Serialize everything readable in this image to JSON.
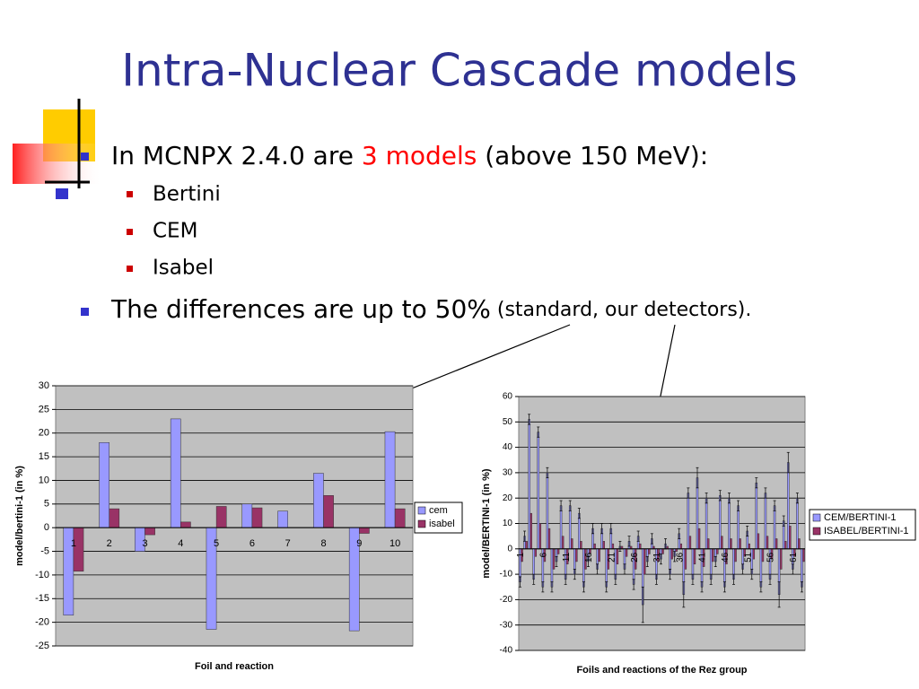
{
  "slide": {
    "title": "Intra-Nuclear Cascade models",
    "bullet1": {
      "pre": "In MCNPX 2.4.0 are ",
      "red": "3 models",
      "post": " (above 150 MeV):"
    },
    "subbullets": [
      "Bertini",
      "CEM",
      "Isabel"
    ],
    "bullet2": {
      "main": "The differences are up to 50%",
      "small": " (standard, our detectors)."
    }
  },
  "chart_data": [
    {
      "type": "bar",
      "xlabel": "Foil and reaction",
      "ylabel": "model/bertini-1 (in %)",
      "categories": [
        "1",
        "2",
        "3",
        "4",
        "5",
        "6",
        "7",
        "8",
        "9",
        "10"
      ],
      "series": [
        {
          "name": "cem",
          "color": "#9999ff",
          "values": [
            -18.5,
            18,
            -5,
            23,
            -21.5,
            5,
            3.5,
            11.5,
            -21.8,
            20.3
          ]
        },
        {
          "name": "isabel",
          "color": "#993366",
          "values": [
            -9.2,
            4,
            -1.5,
            1.2,
            4.5,
            4.2,
            0,
            6.8,
            -1.2,
            4
          ]
        }
      ],
      "ylim": [
        -25,
        30
      ],
      "yticks": [
        -25,
        -20,
        -15,
        -10,
        -5,
        0,
        5,
        10,
        15,
        20,
        25,
        30
      ],
      "grid": true,
      "background": "#c0c0c0",
      "legend": "right"
    },
    {
      "type": "bar",
      "xlabel": "Foils and reactions of the Rez group",
      "ylabel": "model/BERTINI-1 (in %)",
      "categories": [
        "1",
        null,
        null,
        null,
        null,
        "6",
        null,
        null,
        null,
        null,
        "11",
        null,
        null,
        null,
        null,
        "16",
        null,
        null,
        null,
        null,
        "21",
        null,
        null,
        null,
        null,
        "26",
        null,
        null,
        null,
        null,
        "31",
        null,
        null,
        null,
        null,
        "36",
        null,
        null,
        null,
        null,
        "41",
        null,
        null,
        null,
        null,
        "46",
        null,
        null,
        null,
        null,
        "51",
        null,
        null,
        null,
        null,
        "56",
        null,
        null,
        null,
        null,
        "61",
        null,
        null
      ],
      "series": [
        {
          "name": "CEM/BERTINI-1",
          "color": "#9999ff",
          "values": [
            -13,
            5,
            51,
            -12,
            46,
            -15,
            30,
            -15,
            -5,
            17,
            -12,
            17,
            -10,
            14,
            -15,
            -5,
            8,
            -8,
            8,
            -15,
            8,
            -12,
            1,
            -8,
            3,
            -14,
            5,
            -22,
            -5,
            4,
            -12,
            -4,
            2,
            -10,
            -3,
            6,
            -18,
            22,
            -12,
            28,
            -15,
            20,
            -12,
            -5,
            21,
            -15,
            20,
            -12,
            17,
            -8,
            7,
            -10,
            26,
            -15,
            22,
            -12,
            17,
            -18,
            11,
            34,
            -8,
            20,
            -15
          ],
          "errors": [
            2,
            2,
            2,
            2,
            2,
            2,
            2,
            2,
            2,
            2,
            2,
            2,
            2,
            2,
            2,
            2,
            2,
            2,
            2,
            2,
            2,
            2,
            2,
            2,
            2,
            2,
            2,
            7,
            2,
            2,
            2,
            2,
            2,
            2,
            2,
            2,
            5,
            2,
            2,
            4,
            2,
            2,
            2,
            2,
            2,
            2,
            2,
            2,
            2,
            2,
            2,
            2,
            2,
            2,
            2,
            2,
            2,
            5,
            2,
            4,
            2,
            2,
            2
          ]
        },
        {
          "name": "ISABEL/BERTINI-1",
          "color": "#993366",
          "values": [
            -5,
            3,
            14,
            -3,
            10,
            -5,
            8,
            -8,
            -2,
            5,
            -6,
            4,
            -5,
            3,
            -8,
            -2,
            2,
            -5,
            3,
            -8,
            2,
            -6,
            1,
            -3,
            1,
            -8,
            2,
            -10,
            -2,
            1,
            -5,
            -2,
            1,
            -4,
            -1,
            2,
            -8,
            5,
            -6,
            8,
            -7,
            4,
            -5,
            -2,
            5,
            -6,
            4,
            -5,
            4,
            -3,
            2,
            -4,
            6,
            -5,
            5,
            -4,
            4,
            -8,
            3,
            9,
            -3,
            4,
            -5
          ]
        }
      ],
      "ylim": [
        -40,
        60
      ],
      "yticks": [
        -40,
        -30,
        -20,
        -10,
        0,
        10,
        20,
        30,
        40,
        50,
        60
      ],
      "grid": true,
      "background": "#c0c0c0",
      "legend": "right"
    }
  ]
}
